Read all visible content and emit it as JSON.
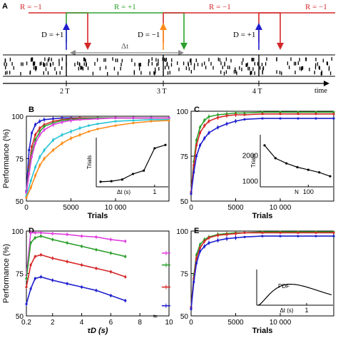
{
  "panel_a": {
    "label": "A",
    "r_labels": [
      {
        "text": "R = −1",
        "color": "#d62728"
      },
      {
        "text": "R = +1",
        "color": "#2ca02c"
      },
      {
        "text": "R = −1",
        "color": "#d62728"
      },
      {
        "text": "R = −1",
        "color": "#d62728"
      }
    ],
    "d_labels": [
      {
        "text": "D = +1",
        "color": "#1f1fcf"
      },
      {
        "text": "D = −1",
        "color": "#ff8c1a"
      },
      {
        "text": "D = +1",
        "color": "#1f1fcf"
      }
    ],
    "delta_label": "Δt",
    "time_ticks": [
      "2 T",
      "3 T",
      "4 T"
    ],
    "time_label": "time"
  },
  "chart_data": [
    {
      "panel": "B",
      "type": "line",
      "xlabel": "Trials",
      "ylabel": "Performance (%)",
      "xlim": [
        0,
        16000
      ],
      "ylim": [
        50,
        100
      ],
      "xticks": [
        "0",
        "5000",
        "10 000"
      ],
      "yticks": [
        "50",
        "75",
        "100"
      ],
      "series": [
        {
          "color": "#1f1fcf",
          "x": [
            0,
            300,
            600,
            1000,
            1500,
            2000,
            3000,
            4000,
            5000,
            6000,
            8000,
            10000,
            12000,
            14000,
            16000
          ],
          "y": [
            56,
            80,
            90,
            95,
            97,
            98,
            98.5,
            99,
            99,
            99,
            99,
            99,
            99,
            99,
            99
          ]
        },
        {
          "color": "#d62728",
          "x": [
            0,
            300,
            600,
            1000,
            1500,
            2000,
            3000,
            4000,
            5000,
            6000,
            8000,
            10000,
            12000,
            14000,
            16000
          ],
          "y": [
            55,
            70,
            82,
            89,
            93,
            95,
            97,
            98,
            98.5,
            99,
            99,
            99,
            99,
            99,
            99
          ]
        },
        {
          "color": "#2ca02c",
          "x": [
            0,
            300,
            600,
            1000,
            1500,
            2000,
            3000,
            4000,
            5000,
            6000,
            8000,
            10000,
            12000,
            14000,
            16000
          ],
          "y": [
            55,
            68,
            78,
            86,
            91,
            94,
            96,
            97.5,
            98,
            98.5,
            99,
            99,
            99,
            99,
            99
          ]
        },
        {
          "color": "#e040e0",
          "x": [
            0,
            300,
            600,
            1000,
            1500,
            2000,
            3000,
            4000,
            5000,
            6000,
            8000,
            10000,
            12000,
            14000,
            16000
          ],
          "y": [
            55,
            66,
            76,
            84,
            89,
            92,
            95,
            96.5,
            97.5,
            98,
            98.5,
            99,
            99,
            99,
            99
          ]
        },
        {
          "color": "#29c4d4",
          "x": [
            0,
            500,
            1000,
            1500,
            2000,
            3000,
            4000,
            5000,
            6000,
            7000,
            8000,
            10000,
            12000,
            14000,
            16000
          ],
          "y": [
            53,
            62,
            70,
            76,
            80,
            86,
            89,
            91,
            93,
            94.5,
            95.5,
            97,
            97.5,
            98,
            98
          ]
        },
        {
          "color": "#ff8c1a",
          "x": [
            0,
            500,
            1000,
            1500,
            2000,
            3000,
            4000,
            5000,
            6000,
            7000,
            8000,
            10000,
            12000,
            14000,
            16000
          ],
          "y": [
            52,
            58,
            65,
            71,
            75,
            80,
            84,
            87,
            89,
            91,
            92.5,
            94.5,
            96,
            97,
            97.5
          ]
        }
      ],
      "inset": {
        "xlabel": "Δt (s)",
        "ylabel": "Trials",
        "xtick": "1",
        "x": [
          0.1,
          0.3,
          0.5,
          0.7,
          0.9,
          1.1,
          1.3
        ],
        "y": [
          500,
          550,
          700,
          1200,
          1500,
          3500,
          3800
        ]
      }
    },
    {
      "panel": "C",
      "type": "line",
      "xlabel": "Trials",
      "ylabel": "",
      "xlim": [
        0,
        16000
      ],
      "ylim": [
        50,
        100
      ],
      "xticks": [
        "0",
        "5000",
        "10 000"
      ],
      "yticks": [
        "50",
        "75",
        "100"
      ],
      "series": [
        {
          "color": "#2ca02c",
          "x": [
            0,
            300,
            600,
            1000,
            1500,
            2000,
            3000,
            4000,
            5000,
            6000,
            8000,
            10000,
            12000,
            14000,
            16000
          ],
          "y": [
            55,
            72,
            84,
            91,
            95,
            97,
            98,
            98.5,
            99,
            99,
            99.5,
            99.5,
            99.5,
            99.5,
            99.5
          ]
        },
        {
          "color": "#d62728",
          "x": [
            0,
            300,
            600,
            1000,
            1500,
            2000,
            3000,
            4000,
            5000,
            6000,
            8000,
            10000,
            12000,
            14000,
            16000
          ],
          "y": [
            55,
            70,
            81,
            88,
            92,
            94.5,
            96.5,
            97.5,
            98,
            98,
            98.5,
            98.5,
            98.5,
            98.5,
            98.5
          ]
        },
        {
          "color": "#1f1fcf",
          "x": [
            0,
            300,
            600,
            1000,
            1500,
            2000,
            3000,
            4000,
            5000,
            6000,
            8000,
            10000,
            12000,
            14000,
            16000
          ],
          "y": [
            54,
            66,
            75,
            81,
            85,
            88,
            91,
            93,
            94.5,
            95.5,
            96,
            96,
            96,
            96,
            96
          ]
        }
      ],
      "inset": {
        "xlabel": "N",
        "ylabel": "Trials",
        "yticks": [
          "1000",
          "2000"
        ],
        "xtick": "100",
        "x": [
          20,
          40,
          60,
          80,
          100,
          120,
          140
        ],
        "y": [
          2400,
          1900,
          1700,
          1550,
          1450,
          1350,
          1200
        ]
      }
    },
    {
      "panel": "D",
      "type": "line",
      "xlabel": "τD (s)",
      "ylabel": "Performance (%)",
      "xlim": [
        0.2,
        10
      ],
      "ylim": [
        50,
        100
      ],
      "xticks": [
        "0.2",
        "2",
        "4",
        "6",
        "8",
        "10"
      ],
      "yticks": [
        "50",
        "75",
        "100"
      ],
      "series": [
        {
          "color": "#e040e0",
          "x": [
            0.2,
            0.5,
            0.8,
            1.2,
            2,
            3,
            4,
            5,
            6,
            7
          ],
          "y": [
            74,
            99,
            99,
            99,
            98.5,
            98,
            97,
            96.5,
            95,
            94
          ],
          "end_value": 87
        },
        {
          "color": "#2ca02c",
          "x": [
            0.2,
            0.5,
            0.8,
            1.2,
            2,
            3,
            4,
            5,
            6,
            7
          ],
          "y": [
            72,
            93,
            96,
            97,
            95,
            93,
            91,
            89,
            87,
            85
          ],
          "end_value": 80
        },
        {
          "color": "#d62728",
          "x": [
            0.2,
            0.5,
            0.8,
            1.2,
            2,
            3,
            4,
            5,
            6,
            7
          ],
          "y": [
            67,
            80,
            85,
            86,
            84,
            82,
            80,
            78,
            76,
            73
          ],
          "end_value": 67
        },
        {
          "color": "#1f1fcf",
          "x": [
            0.2,
            0.5,
            0.8,
            1.2,
            2,
            3,
            4,
            5,
            6,
            7
          ],
          "y": [
            57,
            66,
            72,
            73,
            71,
            69,
            67,
            65,
            62,
            59
          ],
          "end_value": 56
        }
      ]
    },
    {
      "panel": "E",
      "type": "line",
      "xlabel": "Trials",
      "ylabel": "",
      "xlim": [
        0,
        16000
      ],
      "ylim": [
        50,
        100
      ],
      "xticks": [
        "0",
        "5000",
        "10 000"
      ],
      "yticks": [
        "50",
        "75",
        "100"
      ],
      "series": [
        {
          "color": "#2ca02c",
          "x": [
            0,
            300,
            600,
            1000,
            1500,
            2000,
            3000,
            4000,
            5000,
            6000,
            8000,
            10000,
            12000,
            14000,
            16000
          ],
          "y": [
            55,
            74,
            86,
            92,
            95,
            96.5,
            98,
            98.5,
            99,
            99,
            99.5,
            99.5,
            99.5,
            99.5,
            99.5
          ]
        },
        {
          "color": "#d62728",
          "x": [
            0,
            300,
            600,
            1000,
            1500,
            2000,
            3000,
            4000,
            5000,
            6000,
            8000,
            10000,
            12000,
            14000,
            16000
          ],
          "y": [
            55,
            72,
            84,
            90,
            94,
            96,
            97.5,
            98,
            98.5,
            99,
            99,
            99,
            99,
            99,
            99
          ]
        },
        {
          "color": "#1f1fcf",
          "x": [
            0,
            300,
            600,
            1000,
            1500,
            2000,
            3000,
            4000,
            5000,
            6000,
            8000,
            10000,
            12000,
            14000,
            16000
          ],
          "y": [
            54,
            70,
            81,
            88,
            91,
            93,
            94.5,
            95.5,
            96,
            96.5,
            97,
            97,
            97,
            97,
            97
          ]
        }
      ],
      "inset": {
        "label": "PDF",
        "xlabel": "Δt (s)",
        "xtick": "1"
      }
    }
  ]
}
